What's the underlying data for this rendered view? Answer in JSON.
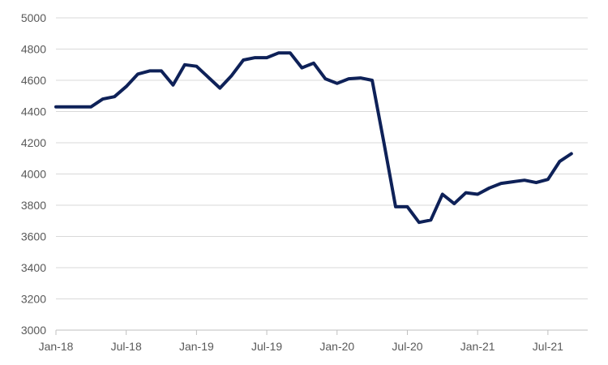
{
  "chart_data": {
    "type": "line",
    "title": "",
    "xlabel": "",
    "ylabel": "",
    "ylim": [
      3000,
      5000
    ],
    "yticks": [
      3000,
      3200,
      3400,
      3600,
      3800,
      4000,
      4200,
      4400,
      4600,
      4800,
      5000
    ],
    "xticks": [
      "Jan-18",
      "Jul-18",
      "Jan-19",
      "Jul-19",
      "Jan-20",
      "Jul-20",
      "Jan-21",
      "Jul-21"
    ],
    "grid": "horizontal",
    "legend": "none",
    "colors": {
      "line": "#0e2158",
      "grid": "#d9d9d9",
      "axis": "#bfbfbf",
      "text": "#595959"
    },
    "series": [
      {
        "x": [
          "2018-01",
          "2018-02",
          "2018-03",
          "2018-04",
          "2018-05",
          "2018-06",
          "2018-07",
          "2018-08",
          "2018-09",
          "2018-10",
          "2018-11",
          "2018-12",
          "2019-01",
          "2019-02",
          "2019-03",
          "2019-04",
          "2019-05",
          "2019-06",
          "2019-07",
          "2019-08",
          "2019-09",
          "2019-10",
          "2019-11",
          "2019-12",
          "2020-01",
          "2020-02",
          "2020-03",
          "2020-04",
          "2020-05",
          "2020-06",
          "2020-07",
          "2020-08",
          "2020-09",
          "2020-10",
          "2020-11",
          "2020-12",
          "2021-01",
          "2021-02",
          "2021-03",
          "2021-04",
          "2021-05",
          "2021-06",
          "2021-07",
          "2021-08",
          "2021-09"
        ],
        "values": [
          4430,
          4430,
          4430,
          4430,
          4480,
          4495,
          4560,
          4640,
          4660,
          4660,
          4570,
          4700,
          4690,
          4620,
          4550,
          4630,
          4730,
          4745,
          4745,
          4775,
          4775,
          4680,
          4710,
          4610,
          4580,
          4610,
          4615,
          4600,
          4200,
          3790,
          3790,
          3690,
          3705,
          3870,
          3810,
          3880,
          3870,
          3910,
          3940,
          3950,
          3960,
          3945,
          3965,
          4080,
          4130
        ]
      }
    ]
  }
}
